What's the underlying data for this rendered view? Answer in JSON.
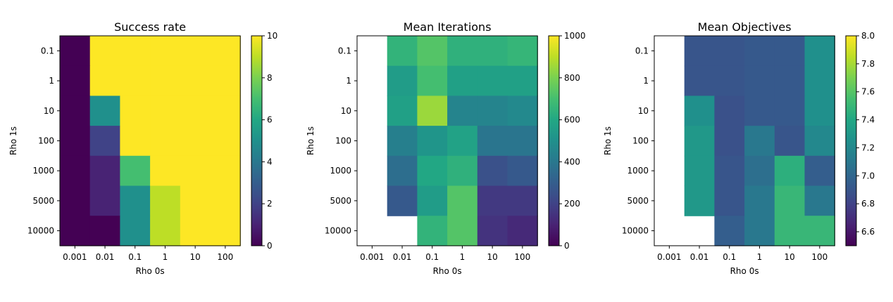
{
  "chart_data": [
    {
      "type": "heatmap",
      "title": "Success rate",
      "xlabel": "Rho 0s",
      "ylabel": "Rho 1s",
      "x_categories": [
        "0.001",
        "0.01",
        "0.1",
        "1",
        "10",
        "100"
      ],
      "y_categories": [
        "0.1",
        "1",
        "10",
        "100",
        "1000",
        "5000",
        "10000"
      ],
      "values": [
        [
          0,
          10,
          10,
          10,
          10,
          10
        ],
        [
          0,
          10,
          10,
          10,
          10,
          10
        ],
        [
          0,
          5,
          10,
          10,
          10,
          10
        ],
        [
          0,
          2,
          10,
          10,
          10,
          10
        ],
        [
          0,
          1,
          7,
          10,
          10,
          10
        ],
        [
          0,
          1,
          5,
          9,
          10,
          10
        ],
        [
          0,
          0,
          5,
          9,
          10,
          10
        ]
      ],
      "colorbar": {
        "min": 0,
        "max": 10,
        "ticks": [
          "0",
          "2",
          "4",
          "6",
          "8",
          "10"
        ],
        "tick_values": [
          0,
          2,
          4,
          6,
          8,
          10
        ]
      },
      "colormap": "viridis"
    },
    {
      "type": "heatmap",
      "title": "Mean Iterations",
      "xlabel": "Rho 0s",
      "ylabel": "Rho 1s",
      "x_categories": [
        "0.001",
        "0.01",
        "0.1",
        "1",
        "10",
        "100"
      ],
      "y_categories": [
        "0.1",
        "1",
        "10",
        "100",
        "1000",
        "5000",
        "10000"
      ],
      "values": [
        [
          null,
          650,
          730,
          640,
          640,
          660
        ],
        [
          null,
          550,
          700,
          570,
          570,
          570
        ],
        [
          null,
          570,
          850,
          450,
          450,
          470
        ],
        [
          null,
          430,
          520,
          580,
          390,
          390
        ],
        [
          null,
          360,
          600,
          640,
          250,
          280
        ],
        [
          null,
          280,
          550,
          730,
          170,
          170
        ],
        [
          null,
          null,
          650,
          730,
          150,
          120
        ]
      ],
      "colorbar": {
        "min": 0,
        "max": 1000,
        "ticks": [
          "0",
          "200",
          "400",
          "600",
          "800",
          "1000"
        ],
        "tick_values": [
          0,
          200,
          400,
          600,
          800,
          1000
        ]
      },
      "colormap": "viridis"
    },
    {
      "type": "heatmap",
      "title": "Mean Objectives",
      "xlabel": "Rho 0s",
      "ylabel": "Rho 1s",
      "x_categories": [
        "0.001",
        "0.01",
        "0.1",
        "1",
        "10",
        "100"
      ],
      "y_categories": [
        "0.1",
        "1",
        "10",
        "100",
        "1000",
        "5000",
        "10000"
      ],
      "values": [
        [
          null,
          6.9,
          6.9,
          6.92,
          6.92,
          7.25
        ],
        [
          null,
          6.9,
          6.9,
          6.92,
          6.92,
          7.25
        ],
        [
          null,
          7.25,
          6.88,
          6.92,
          6.92,
          7.25
        ],
        [
          null,
          7.3,
          6.88,
          7.1,
          6.9,
          7.2
        ],
        [
          null,
          7.3,
          6.9,
          7.05,
          7.45,
          6.95
        ],
        [
          null,
          7.3,
          6.9,
          7.1,
          7.5,
          7.1
        ],
        [
          null,
          null,
          6.95,
          7.1,
          7.5,
          7.5
        ]
      ],
      "colorbar": {
        "min": 6.5,
        "max": 8.0,
        "ticks": [
          "6.6",
          "6.8",
          "7.0",
          "7.2",
          "7.4",
          "7.6",
          "7.8",
          "8.0"
        ],
        "tick_values": [
          6.6,
          6.8,
          7.0,
          7.2,
          7.4,
          7.6,
          7.8,
          8.0
        ]
      },
      "colormap": "viridis"
    }
  ]
}
